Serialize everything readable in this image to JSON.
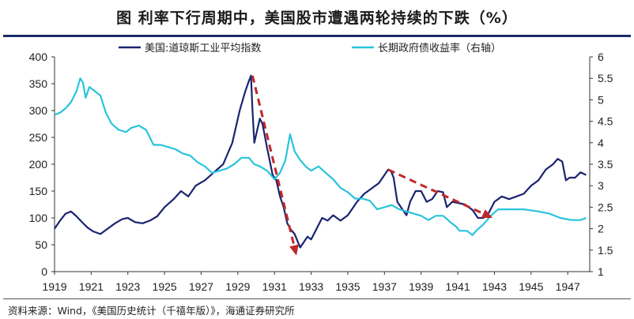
{
  "title": "图  利率下行周期中，美国股市遭遇两轮持续的下跌（%）",
  "source": "资料来源：Wind，《美国历史统计（千禧年版）》，海通证券研究所",
  "colors": {
    "dow": "#1b2470",
    "yield": "#29c4dc",
    "arrow": "#c0282a"
  },
  "chart_data": {
    "type": "line",
    "title": "利率下行周期中，美国股市遭遇两轮持续的下跌（%）",
    "xlabel": "",
    "ylabel_left": "",
    "ylabel_right": "",
    "xlim": [
      1919,
      1948.2
    ],
    "ylim_left": [
      0,
      400
    ],
    "ylim_right": [
      1,
      6
    ],
    "x_ticks": [
      1919,
      1921,
      1923,
      1925,
      1927,
      1929,
      1931,
      1933,
      1935,
      1937,
      1939,
      1941,
      1943,
      1945,
      1947
    ],
    "x_tick_labels": [
      "1919",
      "1921",
      "1923",
      "1925",
      "1927",
      "1929",
      "1931",
      "1933",
      "1935",
      "1937",
      "1939",
      "1941",
      "1943",
      "1945",
      "1947"
    ],
    "y_left_ticks": [
      0,
      50,
      100,
      150,
      200,
      250,
      300,
      350,
      400
    ],
    "y_left_tick_labels": [
      "0",
      "50",
      "100",
      "150",
      "200",
      "250",
      "300",
      "350",
      "400"
    ],
    "y_right_ticks": [
      1,
      1.5,
      2,
      2.5,
      3,
      3.5,
      4,
      4.5,
      5,
      5.5,
      6
    ],
    "y_right_tick_labels": [
      "1",
      "1.5",
      "2",
      "2.5",
      "3",
      "3.5",
      "4",
      "4.5",
      "5",
      "5.5",
      "6"
    ],
    "legend": [
      {
        "name": "美国:道琼斯工业平均指数",
        "axis": "left"
      },
      {
        "name": "长期政府债收益率（右轴）",
        "axis": "right"
      }
    ],
    "series": [
      {
        "name": "美国:道琼斯工业平均指数",
        "axis": "left",
        "points": [
          [
            1919.0,
            80
          ],
          [
            1919.3,
            95
          ],
          [
            1919.6,
            108
          ],
          [
            1919.9,
            112
          ],
          [
            1920.2,
            103
          ],
          [
            1920.5,
            92
          ],
          [
            1920.8,
            82
          ],
          [
            1921.1,
            75
          ],
          [
            1921.5,
            70
          ],
          [
            1921.9,
            80
          ],
          [
            1922.3,
            90
          ],
          [
            1922.7,
            98
          ],
          [
            1923.0,
            100
          ],
          [
            1923.4,
            92
          ],
          [
            1923.8,
            90
          ],
          [
            1924.2,
            95
          ],
          [
            1924.6,
            103
          ],
          [
            1925.0,
            120
          ],
          [
            1925.5,
            135
          ],
          [
            1925.9,
            150
          ],
          [
            1926.3,
            140
          ],
          [
            1926.7,
            160
          ],
          [
            1927.2,
            170
          ],
          [
            1927.7,
            185
          ],
          [
            1928.2,
            200
          ],
          [
            1928.7,
            240
          ],
          [
            1929.1,
            300
          ],
          [
            1929.4,
            335
          ],
          [
            1929.6,
            355
          ],
          [
            1929.72,
            365
          ],
          [
            1929.8,
            300
          ],
          [
            1929.9,
            240
          ],
          [
            1930.0,
            255
          ],
          [
            1930.2,
            285
          ],
          [
            1930.35,
            275
          ],
          [
            1930.6,
            230
          ],
          [
            1930.9,
            180
          ],
          [
            1931.1,
            170
          ],
          [
            1931.3,
            140
          ],
          [
            1931.5,
            120
          ],
          [
            1931.7,
            90
          ],
          [
            1931.9,
            78
          ],
          [
            1932.1,
            70
          ],
          [
            1932.4,
            45
          ],
          [
            1932.6,
            55
          ],
          [
            1932.8,
            65
          ],
          [
            1933.0,
            60
          ],
          [
            1933.3,
            80
          ],
          [
            1933.6,
            100
          ],
          [
            1933.9,
            95
          ],
          [
            1934.2,
            105
          ],
          [
            1934.6,
            95
          ],
          [
            1935.0,
            105
          ],
          [
            1935.5,
            130
          ],
          [
            1935.9,
            145
          ],
          [
            1936.3,
            155
          ],
          [
            1936.7,
            165
          ],
          [
            1937.0,
            180
          ],
          [
            1937.2,
            190
          ],
          [
            1937.35,
            188
          ],
          [
            1937.5,
            175
          ],
          [
            1937.7,
            130
          ],
          [
            1937.9,
            120
          ],
          [
            1938.2,
            105
          ],
          [
            1938.4,
            130
          ],
          [
            1938.7,
            150
          ],
          [
            1939.0,
            150
          ],
          [
            1939.3,
            130
          ],
          [
            1939.6,
            135
          ],
          [
            1939.9,
            150
          ],
          [
            1940.2,
            148
          ],
          [
            1940.4,
            120
          ],
          [
            1940.7,
            130
          ],
          [
            1941.0,
            128
          ],
          [
            1941.4,
            125
          ],
          [
            1941.8,
            115
          ],
          [
            1942.1,
            100
          ],
          [
            1942.4,
            100
          ],
          [
            1942.7,
            110
          ],
          [
            1943.0,
            130
          ],
          [
            1943.4,
            140
          ],
          [
            1943.8,
            135
          ],
          [
            1944.2,
            140
          ],
          [
            1944.6,
            145
          ],
          [
            1945.0,
            160
          ],
          [
            1945.4,
            170
          ],
          [
            1945.8,
            190
          ],
          [
            1946.2,
            200
          ],
          [
            1946.45,
            210
          ],
          [
            1946.7,
            205
          ],
          [
            1946.9,
            170
          ],
          [
            1947.1,
            175
          ],
          [
            1947.4,
            175
          ],
          [
            1947.7,
            185
          ],
          [
            1948.0,
            180
          ]
        ]
      },
      {
        "name": "长期政府债收益率（右轴）",
        "axis": "right",
        "points": [
          [
            1919.0,
            4.65
          ],
          [
            1919.3,
            4.7
          ],
          [
            1919.6,
            4.8
          ],
          [
            1919.9,
            4.95
          ],
          [
            1920.2,
            5.2
          ],
          [
            1920.4,
            5.5
          ],
          [
            1920.55,
            5.4
          ],
          [
            1920.7,
            5.05
          ],
          [
            1920.9,
            5.3
          ],
          [
            1921.2,
            5.2
          ],
          [
            1921.5,
            5.1
          ],
          [
            1921.8,
            4.7
          ],
          [
            1922.1,
            4.45
          ],
          [
            1922.5,
            4.3
          ],
          [
            1922.9,
            4.25
          ],
          [
            1923.2,
            4.35
          ],
          [
            1923.6,
            4.4
          ],
          [
            1924.0,
            4.3
          ],
          [
            1924.4,
            3.95
          ],
          [
            1924.8,
            3.95
          ],
          [
            1925.2,
            3.9
          ],
          [
            1925.6,
            3.85
          ],
          [
            1926.0,
            3.75
          ],
          [
            1926.4,
            3.7
          ],
          [
            1926.8,
            3.55
          ],
          [
            1927.2,
            3.45
          ],
          [
            1927.6,
            3.3
          ],
          [
            1928.0,
            3.35
          ],
          [
            1928.4,
            3.4
          ],
          [
            1928.8,
            3.5
          ],
          [
            1929.2,
            3.65
          ],
          [
            1929.6,
            3.65
          ],
          [
            1929.9,
            3.5
          ],
          [
            1930.2,
            3.45
          ],
          [
            1930.6,
            3.35
          ],
          [
            1931.0,
            3.15
          ],
          [
            1931.3,
            3.3
          ],
          [
            1931.6,
            3.6
          ],
          [
            1931.85,
            4.2
          ],
          [
            1932.1,
            3.8
          ],
          [
            1932.4,
            3.6
          ],
          [
            1932.7,
            3.45
          ],
          [
            1933.0,
            3.35
          ],
          [
            1933.4,
            3.45
          ],
          [
            1933.8,
            3.3
          ],
          [
            1934.2,
            3.15
          ],
          [
            1934.6,
            2.95
          ],
          [
            1935.0,
            2.85
          ],
          [
            1935.4,
            2.7
          ],
          [
            1935.8,
            2.7
          ],
          [
            1936.2,
            2.65
          ],
          [
            1936.6,
            2.45
          ],
          [
            1937.0,
            2.5
          ],
          [
            1937.4,
            2.55
          ],
          [
            1937.8,
            2.45
          ],
          [
            1938.2,
            2.4
          ],
          [
            1938.6,
            2.35
          ],
          [
            1939.0,
            2.3
          ],
          [
            1939.4,
            2.2
          ],
          [
            1939.8,
            2.3
          ],
          [
            1940.2,
            2.3
          ],
          [
            1940.6,
            2.15
          ],
          [
            1940.9,
            2.05
          ],
          [
            1941.1,
            1.95
          ],
          [
            1941.5,
            1.95
          ],
          [
            1941.8,
            1.85
          ],
          [
            1942.0,
            1.95
          ],
          [
            1942.4,
            2.1
          ],
          [
            1942.8,
            2.3
          ],
          [
            1943.2,
            2.45
          ],
          [
            1943.8,
            2.45
          ],
          [
            1944.6,
            2.45
          ],
          [
            1945.4,
            2.4
          ],
          [
            1946.0,
            2.35
          ],
          [
            1946.6,
            2.25
          ],
          [
            1947.2,
            2.2
          ],
          [
            1947.7,
            2.2
          ],
          [
            1948.0,
            2.25
          ]
        ]
      }
    ],
    "annotations": [
      {
        "type": "arrow",
        "from": [
          1929.8,
          365
        ],
        "to": [
          1932.2,
          30
        ]
      },
      {
        "type": "arrow",
        "from": [
          1937.2,
          190
        ],
        "to": [
          1942.9,
          100
        ]
      }
    ]
  }
}
